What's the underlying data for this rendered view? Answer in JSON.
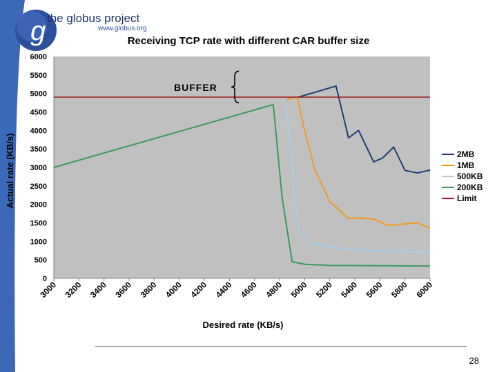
{
  "slide": {
    "logo_main": "the globus project",
    "logo_url": "www.globus.org",
    "logo_letter": "g",
    "page_number": "28",
    "colors": {
      "accent_blue": "#2c4f9e",
      "plot_bg": "#c0c0c0",
      "footer_line": "#8c8c8c"
    }
  },
  "chart_data": {
    "type": "line",
    "title": "Receiving TCP rate with different CAR buffer size",
    "xlabel": "Desired rate (KB/s)",
    "ylabel": "Actual rate (KB/s)",
    "xlim": [
      3000,
      6000
    ],
    "ylim": [
      0,
      6000
    ],
    "x_ticks": [
      3000,
      3200,
      3400,
      3600,
      3800,
      4000,
      4200,
      4400,
      4600,
      4800,
      5000,
      5200,
      5400,
      5600,
      5800,
      6000
    ],
    "y_ticks": [
      0,
      500,
      1000,
      1500,
      2000,
      2500,
      3000,
      3500,
      4000,
      4500,
      5000,
      5500,
      6000
    ],
    "grid": false,
    "legend_position": "right",
    "annotation": {
      "text": "BUFFER",
      "y_from": 4750,
      "y_to": 5600
    },
    "series": [
      {
        "name": "2MB",
        "color": "#1f3d73",
        "points": [
          [
            4950,
            4900
          ],
          [
            5250,
            5200
          ],
          [
            5350,
            3800
          ],
          [
            5430,
            4000
          ],
          [
            5550,
            3150
          ],
          [
            5620,
            3250
          ],
          [
            5710,
            3550
          ],
          [
            5800,
            2920
          ],
          [
            5900,
            2850
          ],
          [
            6000,
            2930
          ]
        ]
      },
      {
        "name": "1MB",
        "color": "#f39a22",
        "points": [
          [
            4830,
            4800
          ],
          [
            4940,
            4920
          ],
          [
            5000,
            4000
          ],
          [
            5080,
            2950
          ],
          [
            5200,
            2080
          ],
          [
            5350,
            1620
          ],
          [
            5450,
            1630
          ],
          [
            5550,
            1600
          ],
          [
            5650,
            1450
          ],
          [
            5700,
            1440
          ],
          [
            5800,
            1470
          ],
          [
            5900,
            1500
          ],
          [
            6000,
            1360
          ]
        ]
      },
      {
        "name": "500KB",
        "color": "#a8cde8",
        "points": [
          [
            4810,
            4800
          ],
          [
            4850,
            4820
          ],
          [
            4900,
            3000
          ],
          [
            4950,
            1250
          ],
          [
            5050,
            950
          ],
          [
            5200,
            850
          ],
          [
            5350,
            780
          ],
          [
            5500,
            760
          ],
          [
            6000,
            700
          ]
        ]
      },
      {
        "name": "200KB",
        "color": "#3a9a5c",
        "points": [
          [
            3000,
            3000
          ],
          [
            4750,
            4700
          ],
          [
            4820,
            2200
          ],
          [
            4900,
            450
          ],
          [
            5000,
            380
          ],
          [
            5200,
            350
          ],
          [
            6000,
            330
          ]
        ]
      },
      {
        "name": "Limit",
        "color": "#9b1c1c",
        "points": [
          [
            3000,
            4900
          ],
          [
            6000,
            4900
          ]
        ]
      }
    ]
  }
}
